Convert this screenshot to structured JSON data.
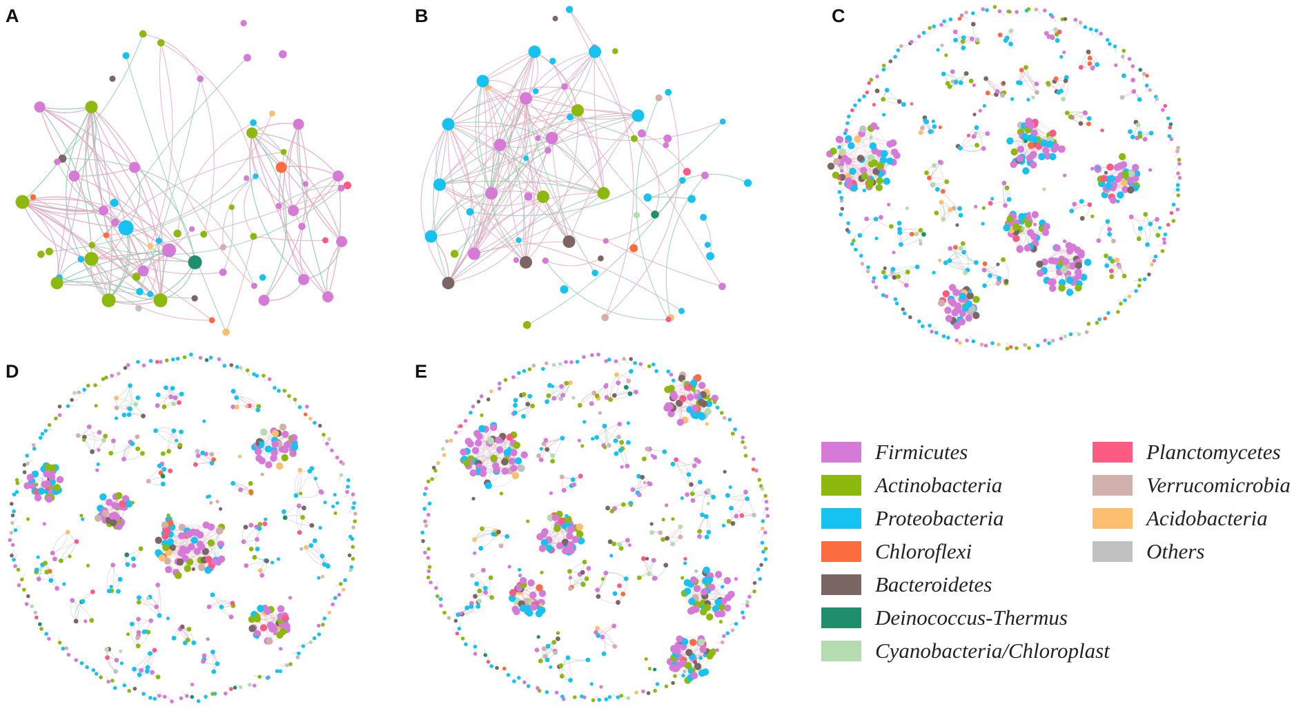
{
  "figure": {
    "panels": [
      {
        "label": "A",
        "style": "sparse_a"
      },
      {
        "label": "B",
        "style": "sparse_b"
      },
      {
        "label": "C",
        "style": "dense"
      },
      {
        "label": "D",
        "style": "dense"
      },
      {
        "label": "E",
        "style": "dense"
      }
    ],
    "edge_colors": {
      "positive": "#e3a6bd",
      "negative": "#8fc9ad"
    }
  },
  "legend": {
    "items": [
      {
        "name": "Firmicutes",
        "color": "#d57ad6"
      },
      {
        "name": "Actinobacteria",
        "color": "#8db90e"
      },
      {
        "name": "Proteobacteria",
        "color": "#16c2f0"
      },
      {
        "name": "Chloroflexi",
        "color": "#fd6c3f"
      },
      {
        "name": "Bacteroidetes",
        "color": "#7c6663"
      },
      {
        "name": "Deinococcus-Thermus",
        "color": "#1e8f6a"
      },
      {
        "name": "Cyanobacteria/Chloroplast",
        "color": "#b5dbb0"
      },
      {
        "name": "Planctomycetes",
        "color": "#fd5a84"
      },
      {
        "name": "Verrucomicrobia",
        "color": "#d2b1ad"
      },
      {
        "name": "Acidobacteria",
        "color": "#fbbf6f"
      },
      {
        "name": "Others",
        "color": "#c1c1c1"
      }
    ]
  }
}
